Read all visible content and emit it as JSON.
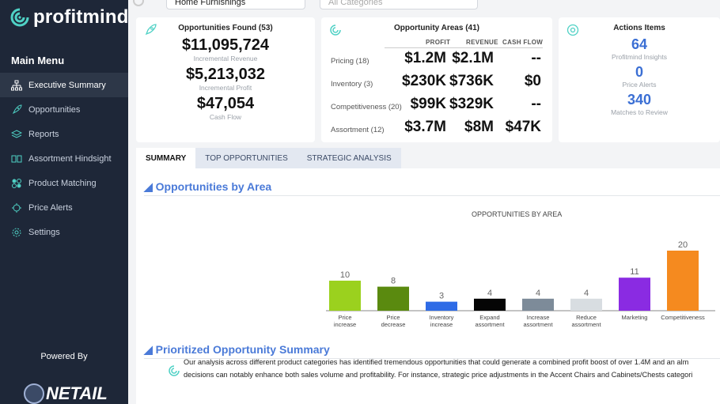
{
  "brand": {
    "name": "profitmind"
  },
  "sidebar": {
    "menu_title": "Main Menu",
    "items": [
      {
        "label": "Executive Summary",
        "icon": "org-chart-icon",
        "active": true
      },
      {
        "label": "Opportunities",
        "icon": "rocket-icon"
      },
      {
        "label": "Reports",
        "icon": "layers-icon"
      },
      {
        "label": "Assortment Hindsight",
        "icon": "compare-icon"
      },
      {
        "label": "Product Matching",
        "icon": "match-icon"
      },
      {
        "label": "Price Alerts",
        "icon": "alert-icon"
      },
      {
        "label": "Settings",
        "icon": "gear-icon"
      }
    ],
    "powered_by": "Powered By",
    "partner": "NETAIL"
  },
  "filters": {
    "category_value": "Home Furnishings",
    "all_placeholder": "All Categories"
  },
  "opportunities_card": {
    "title": "Opportunities Found (53)",
    "revenue": "$11,095,724",
    "revenue_label": "Incremental Revenue",
    "profit": "$5,213,032",
    "profit_label": "Incremental Profit",
    "cashflow": "$47,054",
    "cashflow_label": "Cash Flow"
  },
  "areas_card": {
    "title": "Opportunity Areas (41)",
    "headers": {
      "profit": "PROFIT",
      "revenue": "REVENUE",
      "cashflow": "CASH FLOW"
    },
    "rows": [
      {
        "label": "Pricing (18)",
        "profit": "$1.2M",
        "revenue": "$2.1M",
        "cashflow": "--"
      },
      {
        "label": "Inventory (3)",
        "profit": "$230K",
        "revenue": "$736K",
        "cashflow": "$0"
      },
      {
        "label": "Competitiveness (20)",
        "profit": "$99K",
        "revenue": "$329K",
        "cashflow": "--"
      },
      {
        "label": "Assortment (12)",
        "profit": "$3.7M",
        "revenue": "$8M",
        "cashflow": "$47K"
      }
    ]
  },
  "actions_card": {
    "title": "Actions Items",
    "insights": "64",
    "insights_label": "Profitmind Insights",
    "alerts": "0",
    "alerts_label": "Price Alerts",
    "matches": "340",
    "matches_label": "Matches to Review"
  },
  "tabs": [
    "SUMMARY",
    "TOP OPPORTUNITIES",
    "STRATEGIC ANALYSIS"
  ],
  "section1_title": "◢ Opportunities by Area",
  "section2_title": "◢ Prioritized Opportunity Summary",
  "chart_data": {
    "type": "bar",
    "title": "OPPORTUNITIES BY AREA",
    "categories": [
      "Price increase",
      "Price decrease",
      "Inventory increase",
      "Expand assortment",
      "Increase assortment",
      "Reduce assortment",
      "Marketing",
      "Competitiveness"
    ],
    "values": [
      10,
      8,
      3,
      4,
      4,
      4,
      11,
      20
    ],
    "colors": [
      "#9bd11e",
      "#5a8a0f",
      "#2e6be6",
      "#050505",
      "#7d8b99",
      "#d8dde1",
      "#8a2be2",
      "#f58a1f"
    ],
    "ylim": [
      0,
      20
    ],
    "grid": false,
    "legend": "none"
  },
  "summary_text": [
    "Our analysis across different product categories has identified tremendous opportunities that could generate a combined profit boost of over 1.4M and an alm",
    "decisions can notably enhance both sales volume and profitability. For instance, strategic price adjustments in the Accent Chairs and Cabinets/Chests categori"
  ]
}
